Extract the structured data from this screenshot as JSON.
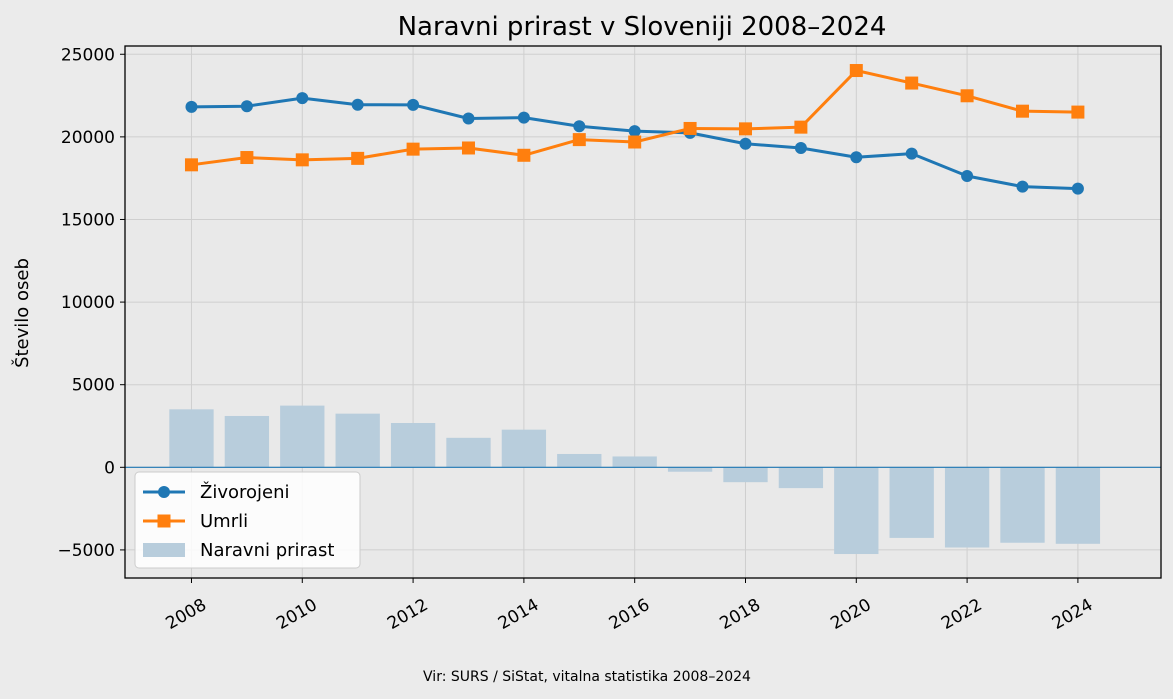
{
  "chart_data": {
    "type": "line",
    "title": "Naravni prirast v Sloveniji 2008–2024",
    "xlabel": "",
    "ylabel": "Število oseb",
    "x": [
      2008,
      2009,
      2010,
      2011,
      2012,
      2013,
      2014,
      2015,
      2016,
      2017,
      2018,
      2019,
      2020,
      2021,
      2022,
      2023,
      2024
    ],
    "xlim": [
      2006.8,
      2025.5
    ],
    "ylim": [
      -6700,
      25500
    ],
    "xticks": [
      2008,
      2010,
      2012,
      2014,
      2016,
      2018,
      2020,
      2022,
      2024
    ],
    "yticks": [
      -5000,
      0,
      5000,
      10000,
      15000,
      20000,
      25000
    ],
    "ytick_labels": [
      "−5000",
      "0",
      "5000",
      "10000",
      "15000",
      "20000",
      "25000"
    ],
    "grid": true,
    "legend_position": "lower-left",
    "series": [
      {
        "name": "Živorojeni",
        "kind": "line",
        "marker": "circle",
        "color": "#1f77b4",
        "values": [
          21817,
          21856,
          22343,
          21947,
          21938,
          21111,
          21165,
          20641,
          20345,
          20241,
          19585,
          19328,
          18767,
          18984,
          17633,
          16989,
          16870
        ]
      },
      {
        "name": "Umrli",
        "kind": "line",
        "marker": "square",
        "color": "#ff7f0e",
        "values": [
          18308,
          18750,
          18609,
          18699,
          19257,
          19327,
          18886,
          19834,
          19689,
          20509,
          20485,
          20588,
          24016,
          23257,
          22487,
          21555,
          21500
        ]
      },
      {
        "name": "Naravni prirast",
        "kind": "bar",
        "color": "#b8cddc",
        "values": [
          3509,
          3106,
          3734,
          3248,
          2681,
          1784,
          2279,
          807,
          656,
          -268,
          -900,
          -1260,
          -5249,
          -4273,
          -4854,
          -4566,
          -4630
        ]
      }
    ],
    "zero_line_color": "#1f77b4",
    "source": "Vir: SURS / SiStat, vitalna statistika 2008–2024"
  }
}
